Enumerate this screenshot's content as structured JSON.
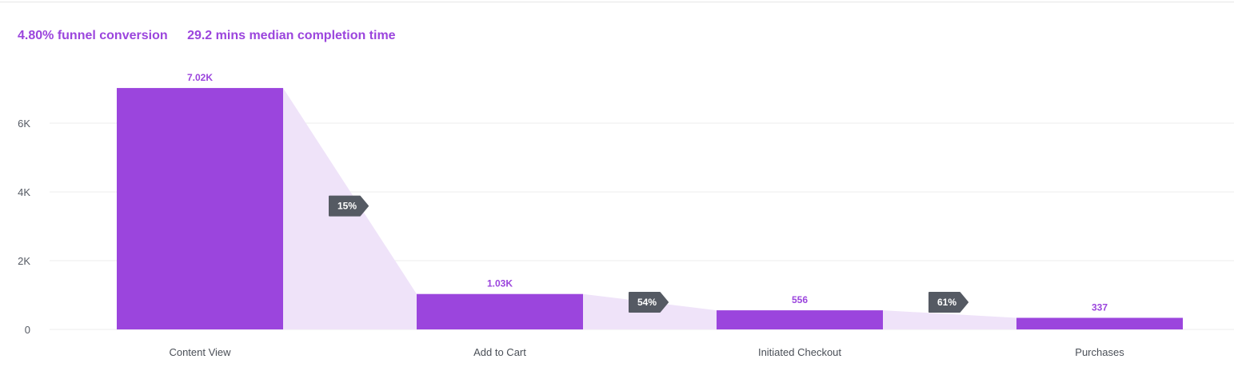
{
  "summary": {
    "conversion": "4.80% funnel conversion",
    "median_time": "29.2 mins median completion time"
  },
  "colors": {
    "bar": "#9b45dd",
    "flow": "#efe3f9",
    "badge": "#555a63",
    "grid": "#ececec",
    "value_label": "#9b45dd"
  },
  "chart_data": {
    "type": "bar",
    "categories": [
      "Content View",
      "Add to Cart",
      "Initiated Checkout",
      "Purchases"
    ],
    "values": [
      7020,
      1030,
      556,
      337
    ],
    "value_labels": [
      "7.02K",
      "1.03K",
      "556",
      "337"
    ],
    "step_conversion": [
      "15%",
      "54%",
      "61%"
    ],
    "y_ticks": [
      0,
      2000,
      4000,
      6000
    ],
    "y_tick_labels": [
      "0",
      "2K",
      "4K",
      "6K"
    ],
    "ylim": [
      0,
      7500
    ],
    "grid": true,
    "title": "",
    "xlabel": "",
    "ylabel": ""
  }
}
